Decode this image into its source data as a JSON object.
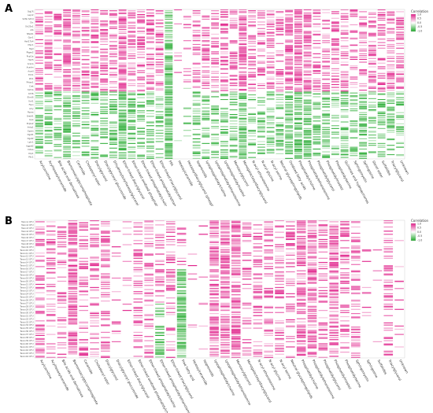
{
  "panels": [
    {
      "letter": "A",
      "legend_title": "Correlation",
      "legend_ticks": [
        "1.0",
        "0.5",
        "0.0",
        "-0.5",
        "-1.0"
      ]
    },
    {
      "letter": "B",
      "legend_title": "Correlation",
      "legend_ticks": [
        "1.0",
        "0.5",
        "0.0",
        "-0.5",
        "-1.0"
      ]
    }
  ],
  "colors": {
    "positive": "#e0218a",
    "negative": "#1fa82a",
    "neutral": "#ffffff"
  },
  "chart_data": [
    {
      "type": "heatmap",
      "title": "A",
      "categories": [
        "Acylcarnitine",
        "Acylhexosylceramide",
        "Bile acids and derivatives",
        "Bismonoacylglycerophosphate",
        "Ceramide",
        "Cholesteryl ester",
        "Diacylglycerol",
        "Diacylglyceryl glucuronide",
        "Dihydroxybutylhexosylglycerol",
        "Ether-linked diacylglycerol",
        "Ether-linked oxidized phosphatidylcholine",
        "Ether-linked phosphatidylcholine",
        "Ether-linked phosphatidylethanolamine",
        "Ether-linked triacylglycerol",
        "FFA",
        "Hexosylceramide",
        "Hexaosyldiacylglycerol (phosphoinositide)",
        "Isoprenoids",
        "Lysophosphatidylcholine",
        "Lysophosphatidylethanolamine",
        "Lysophosphatidylinositol",
        "Monoacylglycerol",
        "Monogalactosyldiacylglycerol",
        "N-acyl ethanolamine",
        "N-acyl glycine",
        "N-acyl serine",
        "Neutral glycosphingolipids",
        "Oxidized fatty acids",
        "Phosphatidylcholine",
        "Phosphatidylethanolamine",
        "Phosphatidylglycerol",
        "Phosphatidylinositol",
        "Phosphatidylserine",
        "Quinones and hydroquinones",
        "Sphingomyelin",
        "Sphingosine",
        "Sterol ester",
        "Sulfatides",
        "Triacylglycerol",
        "Unknown"
      ],
      "row_labels": [
        "Sig1R",
        "Lepr2",
        "Sdhb Sdhd",
        "Dic",
        "Slc25a1",
        "Alb",
        "Nfe2l1",
        "Gpx1",
        "Hsd17b4",
        "Mpc1",
        "Mgll",
        "Ptges2",
        "Pcyt1a",
        "Hadh",
        "Acaca",
        "Acadm",
        "Acadl",
        "Ech1",
        "Idh1",
        "Prkaa1",
        "Crat",
        "Cpt1a",
        "Cd36",
        "Elovl6",
        "Scd1",
        "Fasn",
        "Acly",
        "Ppara",
        "Srebf1",
        "Lipe",
        "Pnpla2",
        "Insig1",
        "Gpam",
        "Dgat1",
        "Dgat2",
        "Lpin1",
        "Agpat2",
        "Cidea",
        "Ucp1",
        "Plin1"
      ],
      "value_range": [
        -1.0,
        1.0
      ]
    },
    {
      "type": "heatmap",
      "title": "B",
      "categories": [
        "Acylcarnitine",
        "Acylhexosylceramide",
        "Bile acids and derivatives",
        "Bismonoacylglycerophosphate",
        "Ceramide",
        "Cholesteryl ester",
        "Diacylglycerol",
        "Diacylglyceryl glucuronide",
        "Ether-linked diacylglycerol",
        "Ether-linked oxidized phosphatidylcholine",
        "Ether-linked phosphatidylcholine",
        "Ether-linked phosphatidylethanolamine",
        "Ether-linked triacylglycerol",
        "Free fatty acid",
        "Hexosylceramide",
        "Isoprenoids",
        "Lysophosphatidylcholine",
        "Lysophosphatidylethanolamine",
        "Monoacylglycerol",
        "Monogalactosyldiacylglycerol",
        "N-acyl ethanolamine",
        "N-acyl glycine",
        "N-acyl serine",
        "Neutral glycosphingolipids",
        "Phosphatidylcholine",
        "Phosphatidylethanolamine",
        "Phosphatidylglycerol",
        "Phosphatidylinositol",
        "Phosphatidylserine",
        "Sphingomyelin",
        "Sphingosine",
        "Sulfatides",
        "Triacylglycerol",
        "Unknown"
      ],
      "row_labels": [
        "Taxon1 OTU",
        "Taxon2 OTU",
        "Taxon3 OTU",
        "Taxon4 OTU",
        "Taxon5 OTU",
        "Taxon6 OTU",
        "Taxon7 OTU",
        "Taxon8 OTU",
        "Taxon9 OTU",
        "Taxon10 OTU",
        "Taxon11 OTU",
        "Taxon12 OTU",
        "Taxon13 OTU",
        "Taxon14 OTU",
        "Taxon15 OTU",
        "Taxon16 OTU",
        "Taxon17 OTU",
        "Taxon18 OTU",
        "Taxon19 OTU",
        "Taxon20 OTU",
        "Taxon21 OTU",
        "Taxon22 OTU",
        "Taxon23 OTU",
        "Taxon24 OTU",
        "Taxon25 OTU",
        "Taxon26 OTU",
        "Taxon27 OTU",
        "Taxon28 OTU",
        "Taxon29 OTU",
        "Taxon30 OTU",
        "Taxon31 OTU",
        "Taxon32 OTU",
        "Taxon33 OTU",
        "Taxon34 OTU",
        "Taxon35 OTU",
        "Taxon36 OTU",
        "Taxon37 OTU",
        "Taxon38 OTU",
        "Taxon39 OTU",
        "Taxon40 OTU",
        "Taxon41 OTU",
        "Taxon42 OTU",
        "Taxon43 OTU",
        "Taxon44 OTU"
      ],
      "value_range": [
        -1.0,
        1.0
      ]
    }
  ]
}
